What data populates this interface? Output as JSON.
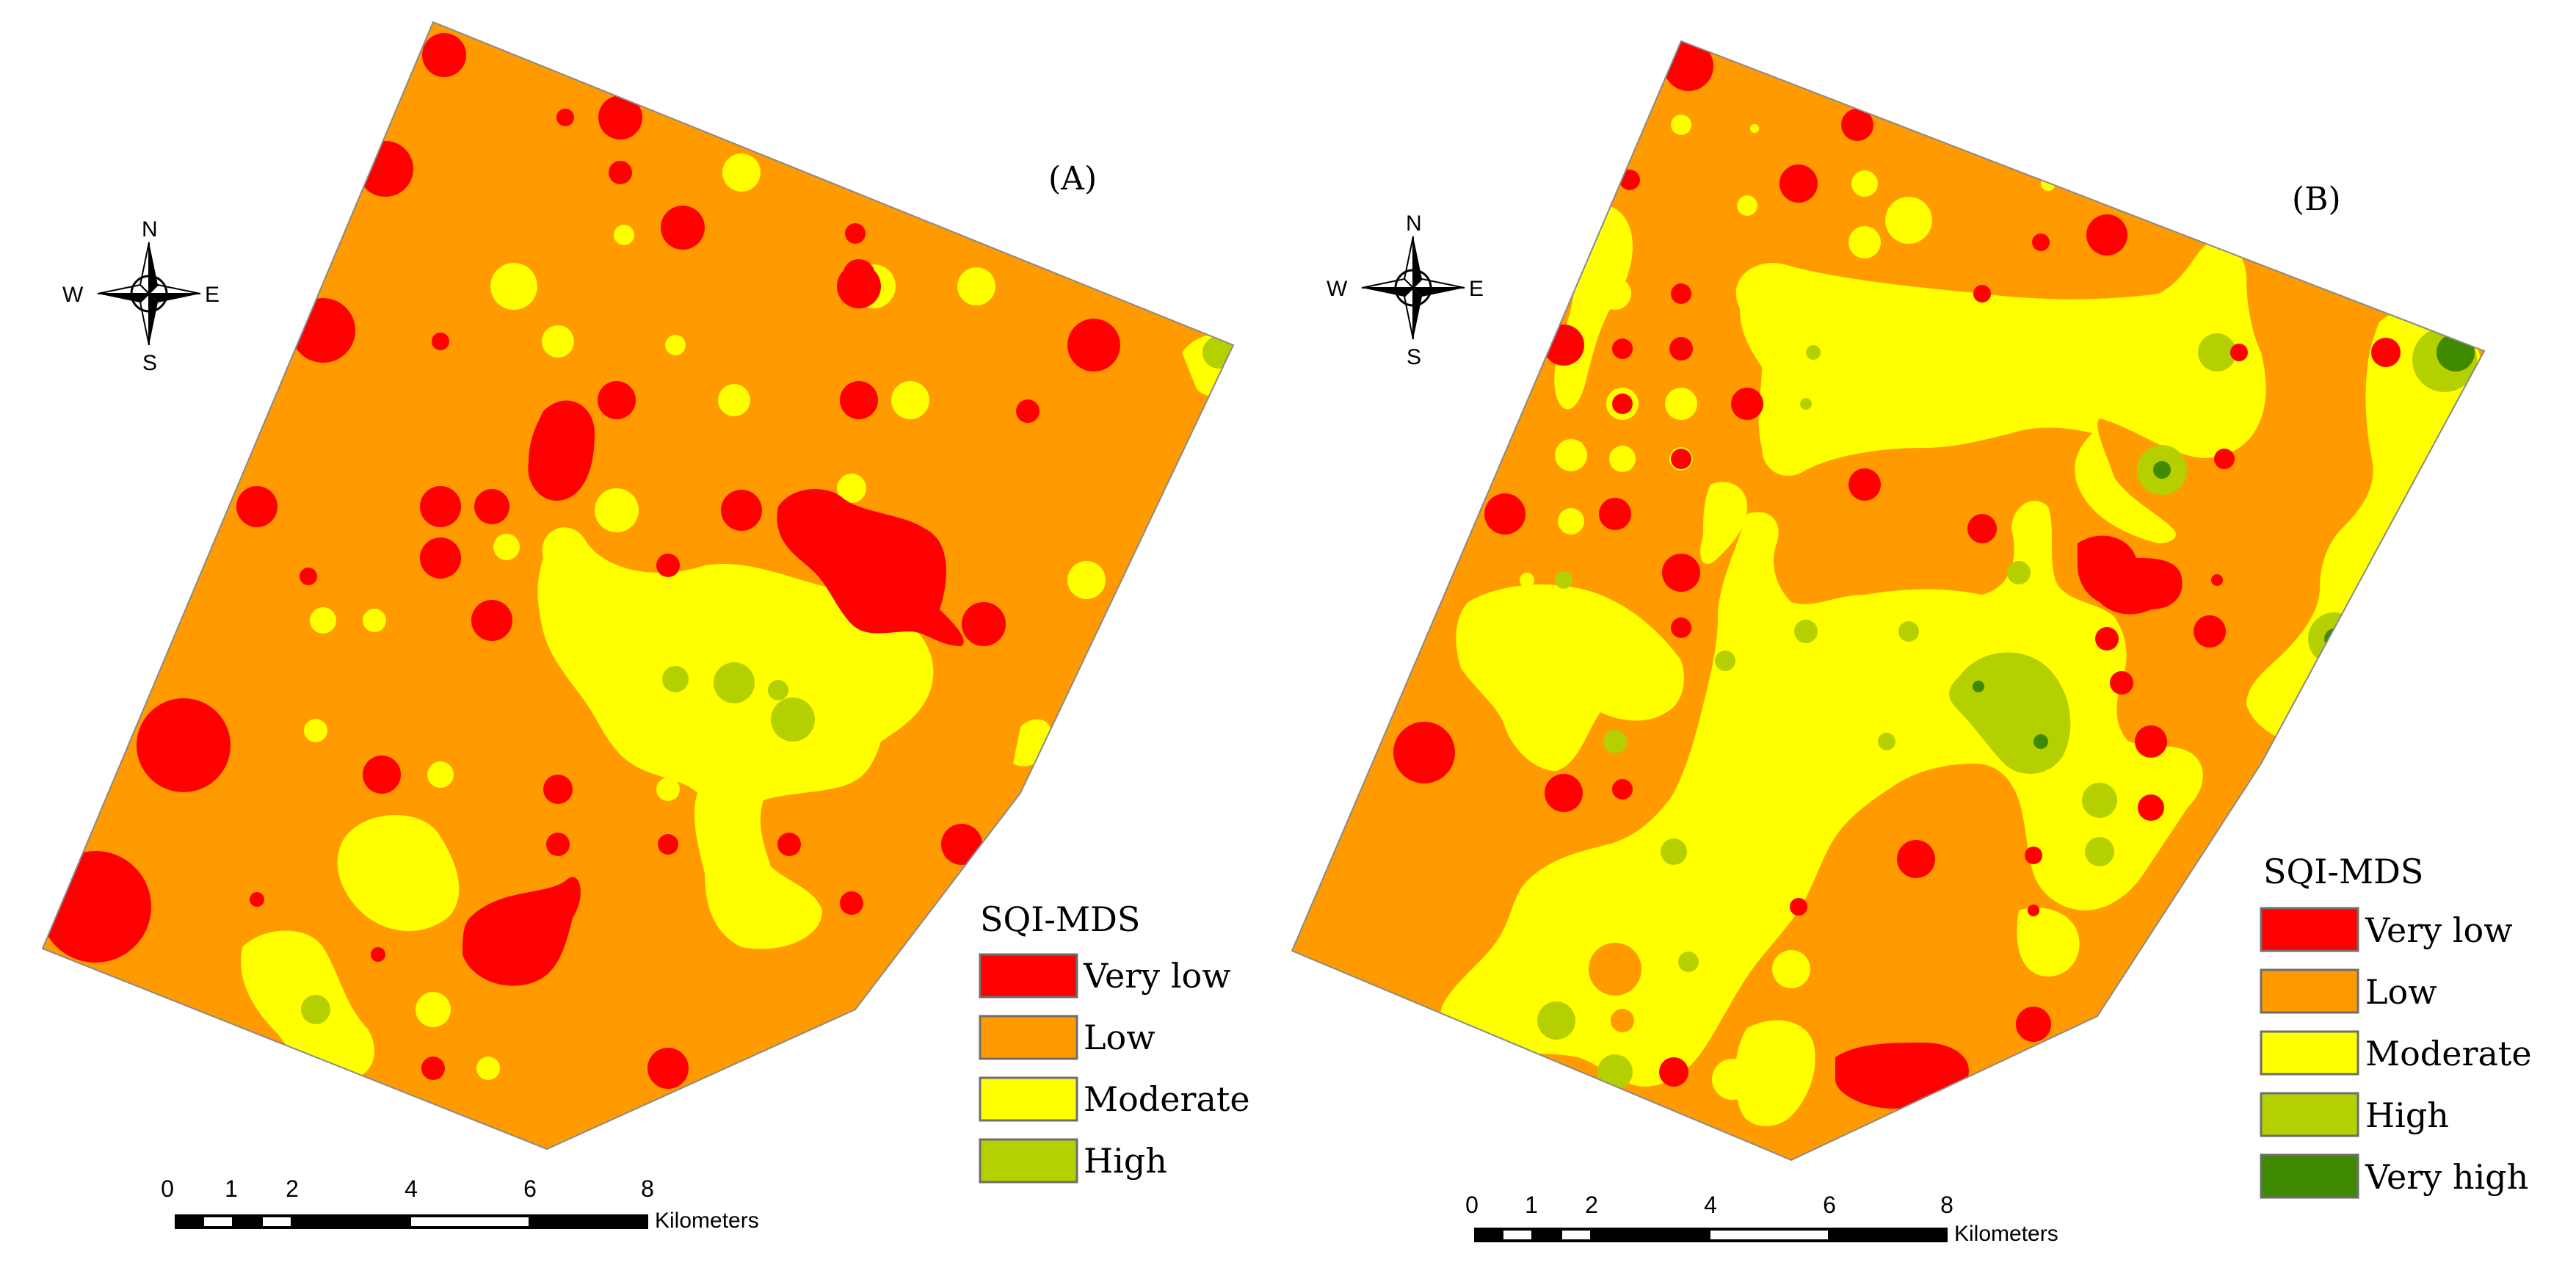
{
  "colors": {
    "very_low": "#ff0000",
    "low": "#ff9a00",
    "moderate": "#ffff00",
    "high": "#b4d000",
    "very_high": "#3f8a00",
    "border": "#6e6e6e"
  },
  "compass": {
    "n": "N",
    "s": "S",
    "e": "E",
    "w": "W"
  },
  "scale": {
    "ticks": [
      "0",
      "1",
      "2",
      "4",
      "6",
      "8"
    ],
    "unit": "Kilometers"
  },
  "panels": [
    {
      "label": "(A)",
      "legend": {
        "title": "SQI-MDS",
        "classes": [
          "Very low",
          "Low",
          "Moderate",
          "High"
        ]
      }
    },
    {
      "label": "(B)",
      "legend": {
        "title": "SQI-MDS",
        "classes": [
          "Very low",
          "Low",
          "Moderate",
          "High",
          "Very high"
        ]
      }
    }
  ]
}
